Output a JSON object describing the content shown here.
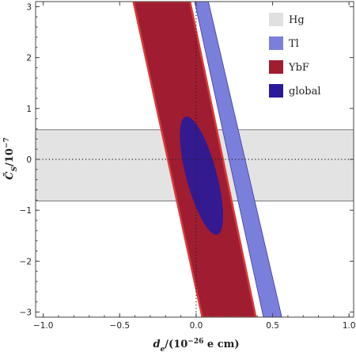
{
  "chart_data": {
    "type": "area",
    "xlim": [
      -1.05,
      1.03
    ],
    "ylim": [
      -3.1,
      3.1
    ],
    "x_ticks": [
      -1.0,
      -0.5,
      0.0,
      0.5,
      1.0
    ],
    "x_tick_labels": [
      "−1.0",
      "−0.5",
      "0.0",
      "0.5",
      "1.0"
    ],
    "y_ticks": [
      -3,
      -2,
      -1,
      0,
      1,
      2,
      3
    ],
    "y_tick_labels": [
      "−3",
      "−2",
      "−1",
      "0",
      "1",
      "2",
      "3"
    ],
    "xlabel": "de/(10−26 e cm)",
    "ylabel": "C̃S/10−7",
    "xlabel_parts": {
      "var": "d",
      "sub": "e",
      "pre": "/(10",
      "sup": "−26",
      "post": " e cm)"
    },
    "ylabel_parts": {
      "var": "C̃",
      "sub": "S",
      "pre": "/10",
      "sup": "−7"
    },
    "grid": false,
    "legend_position": "top-right",
    "reference_lines": {
      "x": 0,
      "y": 0,
      "style": "dotted"
    },
    "series": [
      {
        "name": "Hg",
        "shape": "horizontal-band",
        "y_range": [
          -0.82,
          0.58
        ],
        "color": "#e0e0e0",
        "edge": "#555555"
      },
      {
        "name": "Tl",
        "shape": "band",
        "polygon": [
          [
            -0.01,
            3.1
          ],
          [
            0.08,
            3.1
          ],
          [
            0.56,
            -3.1
          ],
          [
            0.44,
            -3.1
          ]
        ],
        "color": "#7b7fdc",
        "edge": "#3a3aa8"
      },
      {
        "name": "YbF",
        "shape": "band",
        "polygon": [
          [
            -0.41,
            3.1
          ],
          [
            -0.04,
            3.1
          ],
          [
            0.39,
            -3.1
          ],
          [
            0.04,
            -3.1
          ]
        ],
        "color": "#a01c30",
        "edge": "#d83a3a"
      },
      {
        "name": "global",
        "shape": "ellipse",
        "center": [
          0.035,
          -0.32
        ],
        "semi_axes": [
          0.1,
          1.2
        ],
        "rotation_deg": 15,
        "color": "#2a1a9a"
      }
    ]
  }
}
